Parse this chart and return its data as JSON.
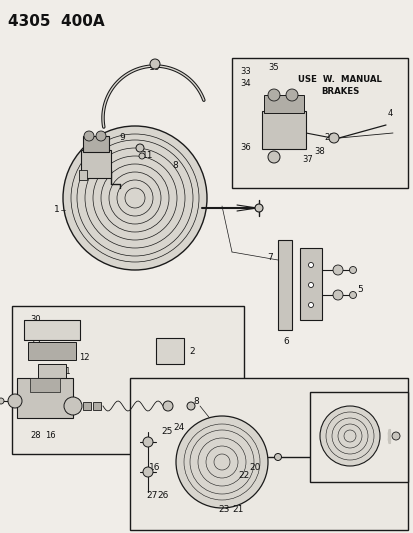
{
  "title": "4305  400A",
  "bg_color": "#f0ede8",
  "line_color": "#1a1a1a",
  "text_color": "#111111",
  "gray1": "#c8c5be",
  "gray2": "#b0ada6",
  "gray3": "#d8d5ce",
  "box_bg": "#ebe8e2",
  "title_fontsize": 11,
  "label_fontsize": 6.5
}
